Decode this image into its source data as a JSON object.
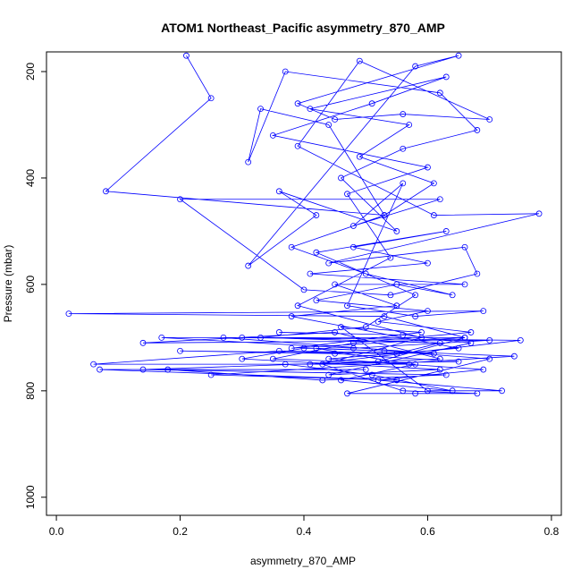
{
  "chart_data": {
    "type": "line",
    "title": "ATOM1 Northeast_Pacific asymmetry_870_AMP",
    "xlabel": "asymmetry_870_AMP",
    "ylabel": "Pressure (mbar)",
    "color": "#0000ff",
    "marker": "open-circle",
    "x": [
      0.21,
      0.25,
      0.08,
      0.53,
      0.44,
      0.33,
      0.31,
      0.37,
      0.62,
      0.68,
      0.56,
      0.46,
      0.55,
      0.36,
      0.42,
      0.31,
      0.58,
      0.65,
      0.39,
      0.45,
      0.56,
      0.7,
      0.49,
      0.39,
      0.61,
      0.78,
      0.44,
      0.66,
      0.68,
      0.54,
      0.4,
      0.2,
      0.62,
      0.48,
      0.56,
      0.47,
      0.58,
      0.69,
      0.02,
      0.53,
      0.66,
      0.3,
      0.17,
      0.48,
      0.7,
      0.14,
      0.45,
      0.62,
      0.41,
      0.75,
      0.27,
      0.61,
      0.36,
      0.06,
      0.57,
      0.42,
      0.74,
      0.25,
      0.55,
      0.07,
      0.5,
      0.18,
      0.43,
      0.63,
      0.14,
      0.52,
      0.66,
      0.38,
      0.59,
      0.46,
      0.6,
      0.72,
      0.52,
      0.69,
      0.44,
      0.65,
      0.38,
      0.55,
      0.45,
      0.66,
      0.41,
      0.6,
      0.48,
      0.63,
      0.42,
      0.58,
      0.5,
      0.33,
      0.62,
      0.55,
      0.2,
      0.45,
      0.65,
      0.37,
      0.51,
      0.64,
      0.46,
      0.58,
      0.35,
      0.48,
      0.67,
      0.52,
      0.6,
      0.42,
      0.55,
      0.64,
      0.5,
      0.38,
      0.53,
      0.61,
      0.49,
      0.57,
      0.41,
      0.63,
      0.51,
      0.35,
      0.6,
      0.47,
      0.54,
      0.39,
      0.59,
      0.43,
      0.56,
      0.68,
      0.58,
      0.47,
      0.7,
      0.53,
      0.4,
      0.3,
      0.62,
      0.44,
      0.67,
      0.56,
      0.36
    ],
    "values": [
      170,
      250,
      425,
      470,
      300,
      270,
      370,
      200,
      240,
      310,
      345,
      400,
      500,
      425,
      470,
      565,
      190,
      170,
      260,
      290,
      280,
      290,
      180,
      340,
      470,
      467,
      560,
      530,
      580,
      620,
      610,
      440,
      440,
      490,
      410,
      640,
      660,
      650,
      655,
      660,
      700,
      700,
      700,
      720,
      705,
      710,
      690,
      740,
      750,
      705,
      700,
      730,
      725,
      750,
      750,
      720,
      735,
      770,
      780,
      760,
      760,
      760,
      780,
      770,
      760,
      745,
      700,
      720,
      690,
      680,
      800,
      800,
      780,
      760,
      740,
      720,
      660,
      640,
      600,
      600,
      580,
      560,
      530,
      500,
      540,
      620,
      680,
      700,
      710,
      730,
      725,
      730,
      745,
      750,
      770,
      800,
      780,
      750,
      740,
      710,
      690,
      670,
      650,
      630,
      600,
      620,
      580,
      530,
      470,
      410,
      360,
      300,
      270,
      210,
      260,
      320,
      380,
      430,
      550,
      640,
      700,
      750,
      800,
      805,
      805,
      805,
      740,
      725,
      720,
      740,
      760,
      770,
      710,
      695,
      690
    ],
    "xlim": [
      -0.016,
      0.816
    ],
    "ylim": [
      1034,
      163
    ],
    "xticks": [
      {
        "value": 0,
        "label": "0.0"
      },
      0.2,
      0.4,
      0.6,
      0.8
    ],
    "yticks": [
      200,
      400,
      600,
      800,
      1000
    ]
  }
}
